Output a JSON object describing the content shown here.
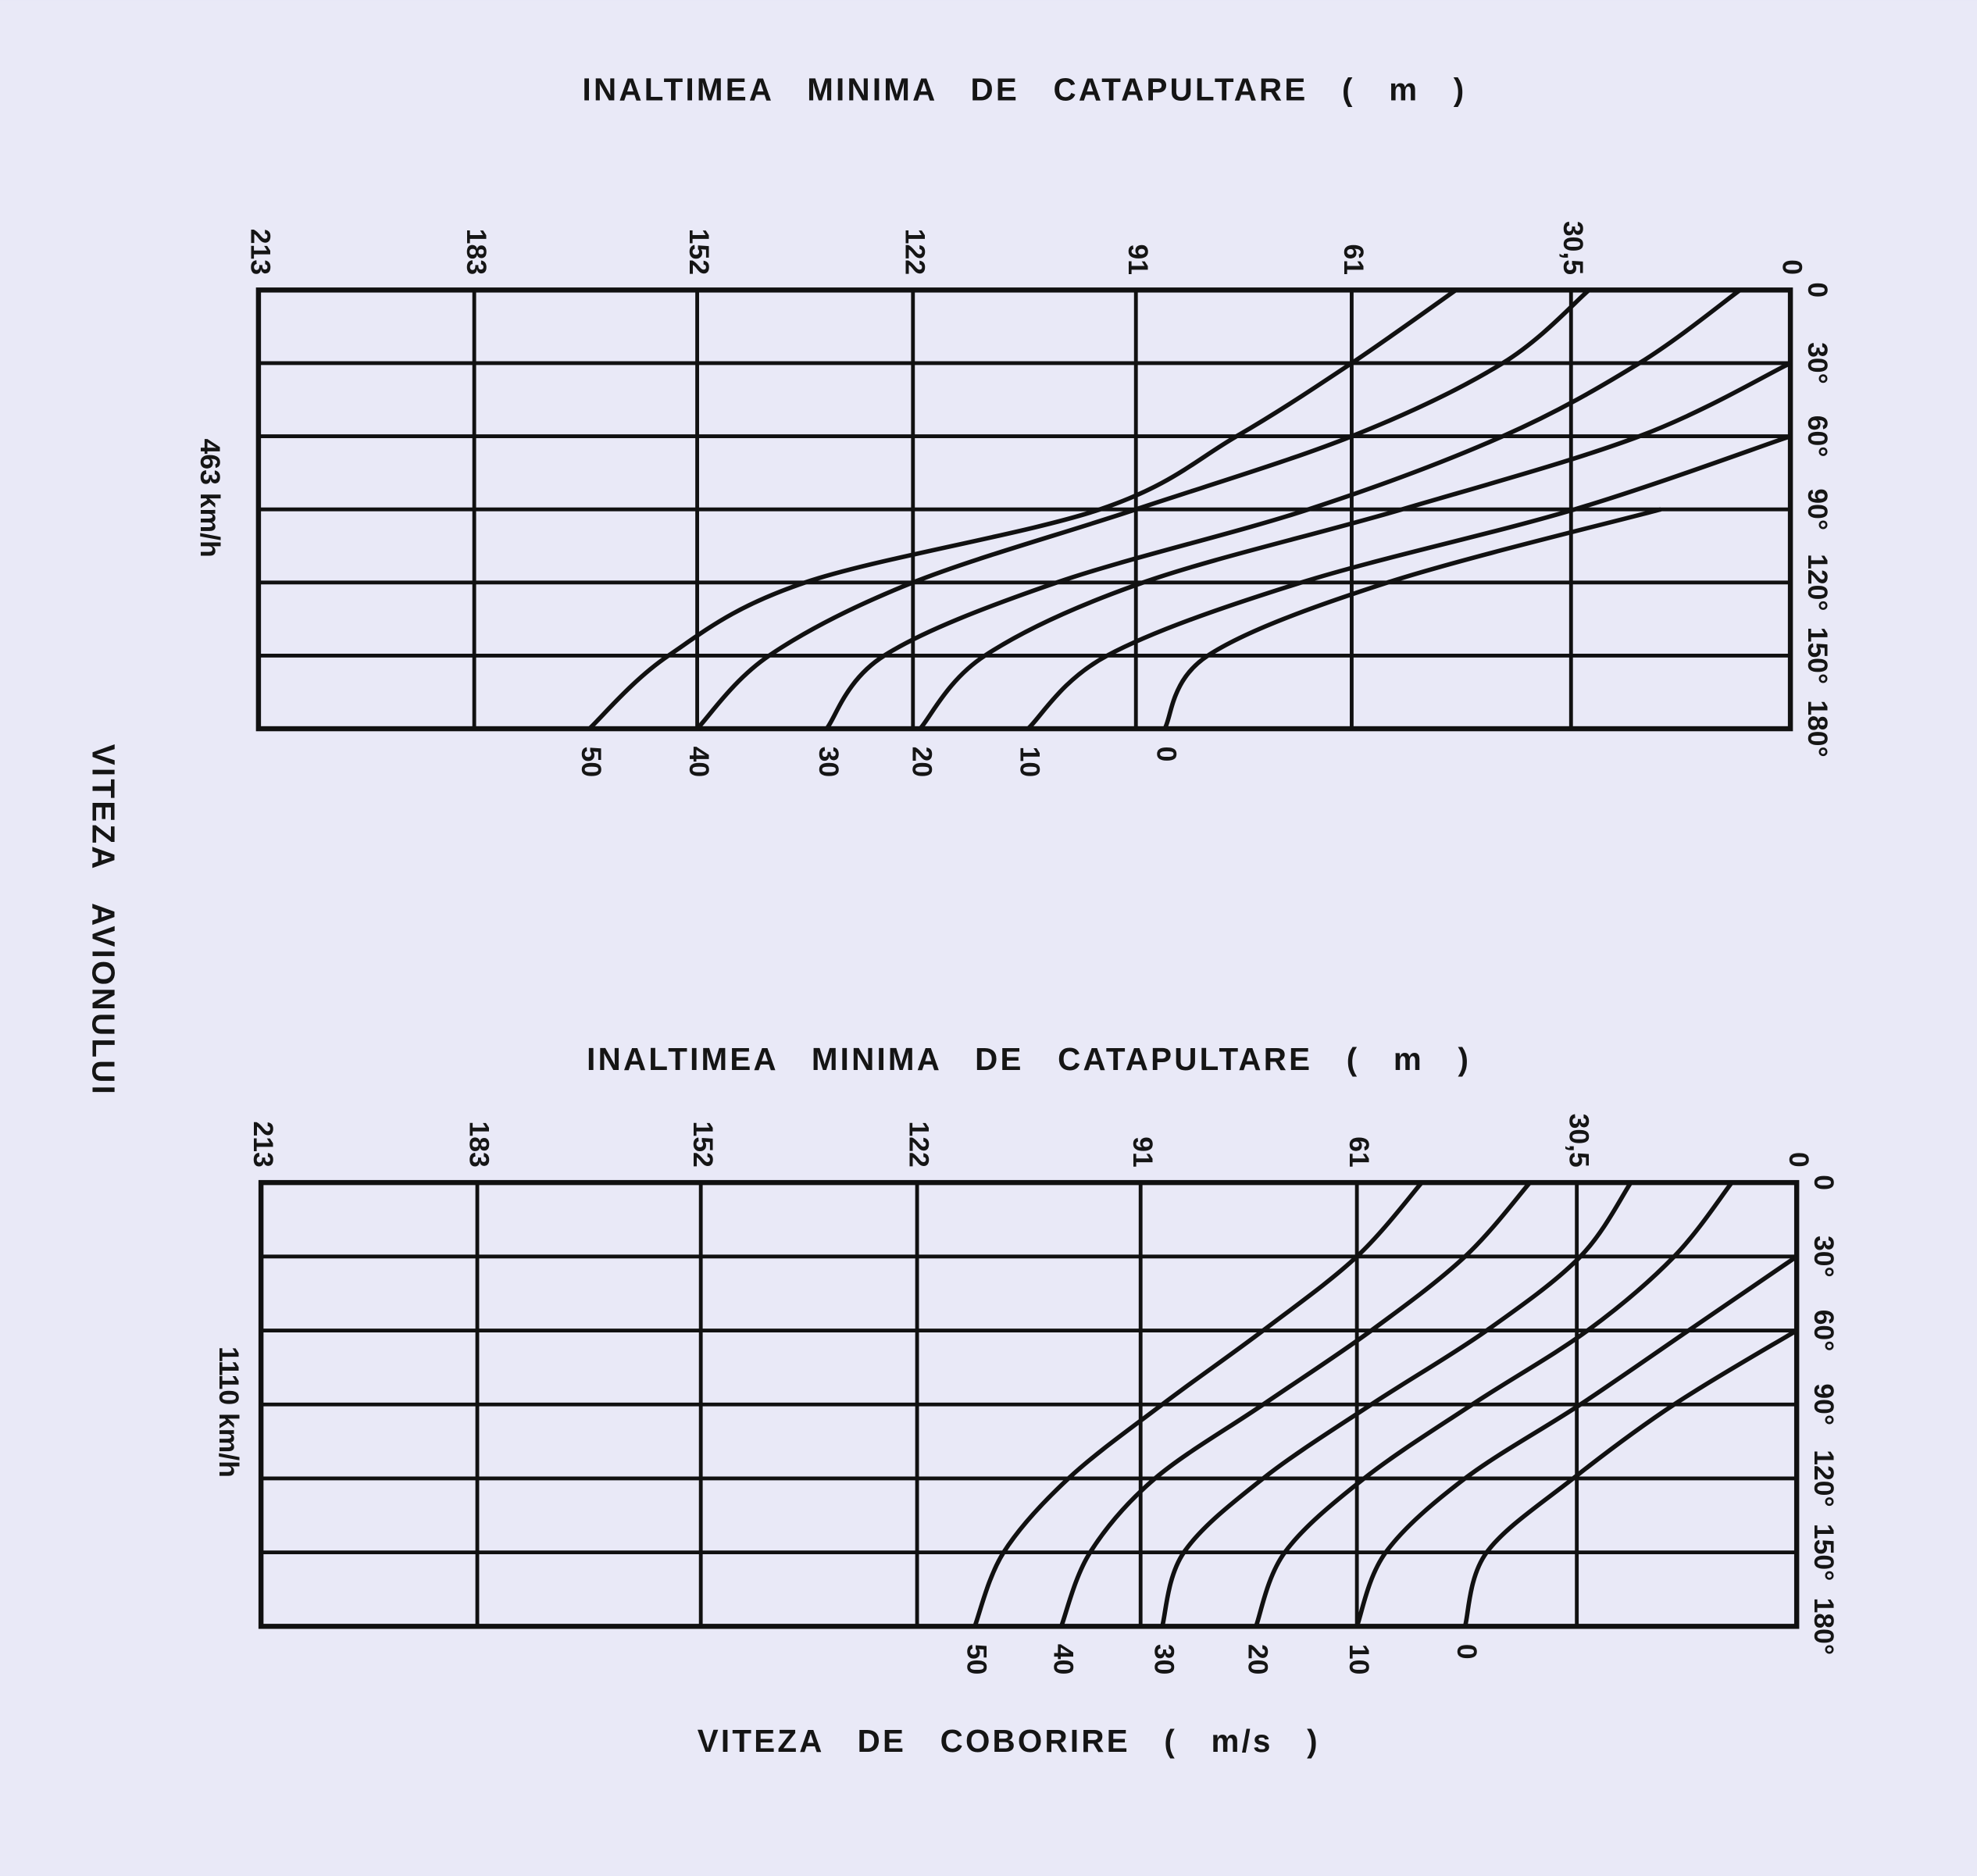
{
  "y_label": "VITEZA AVIONULUI",
  "legend_title": "VITEZA DE COBORIRE ( m/s )",
  "chart_data": [
    {
      "type": "line",
      "title": "INALTIMEA MINIMA DE CATAPULTARE ( m )",
      "subtitle": "463 km/h",
      "xlim": [
        213,
        0
      ],
      "xticks": [
        213,
        183,
        152,
        122,
        91,
        61,
        {
          "value": 30.5,
          "label": "30,5"
        },
        0
      ],
      "ylim": [
        0,
        180
      ],
      "yticks": [
        0,
        {
          "value": 30,
          "label": "30°"
        },
        {
          "value": 60,
          "label": "60°"
        },
        {
          "value": 90,
          "label": "90°"
        },
        {
          "value": 120,
          "label": "120°"
        },
        {
          "value": 150,
          "label": "150°"
        },
        {
          "value": 180,
          "label": "180°"
        }
      ],
      "y": [
        0,
        30,
        60,
        90,
        120,
        150,
        180
      ],
      "grid": true,
      "series": [
        {
          "name": "50",
          "color": "#111111",
          "values": [
            46.5,
            61,
            77,
            96,
            137,
            156,
            167
          ]
        },
        {
          "name": "40",
          "color": "#111111",
          "values": [
            28,
            40,
            61,
            91,
            122,
            142,
            152
          ]
        },
        {
          "name": "30",
          "color": "#111111",
          "values": [
            7,
            21,
            40,
            67,
            102,
            126,
            134
          ]
        },
        {
          "name": "20",
          "color": "#111111",
          "values": [
            null,
            0,
            21,
            54,
            90,
            112,
            121
          ]
        },
        {
          "name": "10",
          "color": "#111111",
          "values": [
            null,
            null,
            0,
            30,
            68,
            95,
            106
          ]
        },
        {
          "name": "0",
          "color": "#111111",
          "values": [
            null,
            null,
            null,
            18,
            56,
            81,
            87
          ]
        }
      ]
    },
    {
      "type": "line",
      "title": "INALTIMEA MINIMA DE CATAPULTARE ( m )",
      "subtitle": "1110 km/h",
      "xlim": [
        213,
        0
      ],
      "xticks": [
        213,
        183,
        152,
        122,
        91,
        61,
        {
          "value": 30.5,
          "label": "30,5"
        },
        0
      ],
      "ylim": [
        0,
        180
      ],
      "yticks": [
        0,
        {
          "value": 30,
          "label": "30°"
        },
        {
          "value": 60,
          "label": "60°"
        },
        {
          "value": 90,
          "label": "90°"
        },
        {
          "value": 120,
          "label": "120°"
        },
        {
          "value": 150,
          "label": "150°"
        },
        {
          "value": 180,
          "label": "180°"
        }
      ],
      "y": [
        0,
        30,
        60,
        90,
        120,
        150,
        180
      ],
      "grid": true,
      "series": [
        {
          "name": "50",
          "color": "#111111",
          "values": [
            52,
            61,
            74,
            88,
            101,
            110,
            114
          ]
        },
        {
          "name": "40",
          "color": "#111111",
          "values": [
            37,
            46,
            59,
            74,
            89,
            98,
            102
          ]
        },
        {
          "name": "30",
          "color": "#111111",
          "values": [
            23,
            30,
            43,
            59,
            74,
            85,
            88
          ]
        },
        {
          "name": "20",
          "color": "#111111",
          "values": [
            9,
            17,
            29,
            45,
            60,
            71,
            75
          ]
        },
        {
          "name": "10",
          "color": "#111111",
          "values": [
            null,
            0,
            15,
            30,
            46,
            57,
            61
          ]
        },
        {
          "name": "0",
          "color": "#111111",
          "values": [
            null,
            null,
            0,
            17,
            31,
            43,
            46
          ]
        }
      ]
    }
  ]
}
